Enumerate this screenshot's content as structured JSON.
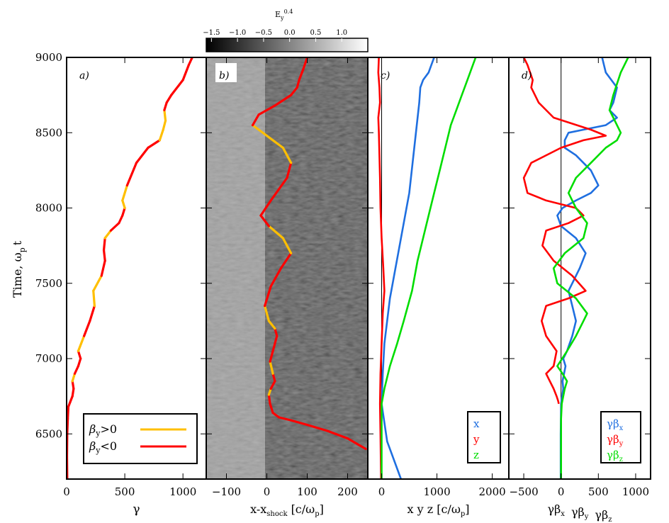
{
  "chart_data": {
    "type": "line",
    "shared_y": {
      "label": "Time, ω",
      "label_sub": "p",
      "label_tail": "t",
      "ylim": [
        6200,
        9000
      ],
      "ticks": [
        6500,
        7000,
        7500,
        8000,
        8500,
        9000
      ],
      "tick_labels": [
        "6500",
        "7000",
        "7500",
        "8000",
        "8500",
        "9000"
      ]
    },
    "panels": [
      {
        "id": "a",
        "panel_label": "a)",
        "xlabel": "γ",
        "xlim": [
          0,
          1200
        ],
        "xticks": [
          0,
          500,
          1000
        ],
        "xtick_labels": [
          "0",
          "500",
          "1000"
        ],
        "legend": [
          {
            "label": "β",
            "sub": "y",
            "tail": ">0",
            "color": "#ffbf00"
          },
          {
            "label": "β",
            "sub": "y",
            "tail": "<0",
            "color": "#ff0000"
          }
        ],
        "series": [
          {
            "name": "gamma",
            "x": [
              5,
              3,
              5,
              10,
              15,
              30,
              50,
              60,
              50,
              70,
              100,
              120,
              100,
              150,
              200,
              240,
              230,
              300,
              330,
              320,
              330,
              380,
              450,
              480,
              500,
              480,
              520,
              600,
              700,
              800,
              830,
              850,
              840,
              860,
              900,
              1000,
              1050,
              1080
            ],
            "y": [
              6200,
              6350,
              6500,
              6600,
              6680,
              6710,
              6750,
              6800,
              6850,
              6900,
              6950,
              7000,
              7050,
              7150,
              7250,
              7350,
              7450,
              7550,
              7650,
              7720,
              7800,
              7850,
              7900,
              7950,
              8000,
              8050,
              8150,
              8300,
              8400,
              8450,
              8520,
              8580,
              8650,
              8700,
              8750,
              8850,
              8950,
              9000
            ],
            "sign": [
              "n",
              "n",
              "n",
              "n",
              "n",
              "n",
              "n",
              "n",
              "p",
              "n",
              "n",
              "n",
              "p",
              "n",
              "n",
              "p",
              "p",
              "n",
              "n",
              "n",
              "p",
              "n",
              "n",
              "n",
              "p",
              "p",
              "n",
              "n",
              "n",
              "p",
              "p",
              "p",
              "n",
              "n",
              "n",
              "n",
              "n",
              "n"
            ]
          }
        ]
      },
      {
        "id": "b",
        "panel_label": "b)",
        "xlabel": "x-x",
        "xlabel_sub": "shock",
        "xlabel_tail": "[c/ω",
        "xlabel_tail_sub": "p",
        "xlabel_end": "]",
        "xlim": [
          -150,
          250
        ],
        "xticks": [
          -100,
          0,
          100,
          200
        ],
        "xtick_labels": [
          "−100",
          "0",
          "100",
          "200"
        ],
        "colorbar": {
          "label": "E",
          "label_sub": "y",
          "label_sup": "0.4",
          "range": [
            -1.6,
            1.5
          ],
          "ticks": [
            -1.5,
            -1.0,
            -0.5,
            0.0,
            0.5,
            1.0
          ],
          "tick_labels": [
            "−1.5",
            "−1.0",
            "−0.5",
            "0.0",
            "0.5",
            "1.0"
          ],
          "colors": [
            "#000000",
            "#ffffff"
          ]
        },
        "series": [
          {
            "name": "particle_track",
            "x": [
              245,
              200,
              150,
              100,
              60,
              30,
              15,
              8,
              5,
              10,
              20,
              15,
              8,
              15,
              25,
              20,
              5,
              -5,
              10,
              35,
              60,
              40,
              5,
              -15,
              10,
              50,
              60,
              40,
              0,
              -35,
              -20,
              20,
              60,
              75,
              80,
              90,
              100
            ],
            "y": [
              6400,
              6470,
              6520,
              6560,
              6590,
              6610,
              6640,
              6700,
              6760,
              6800,
              6850,
              6900,
              6980,
              7050,
              7150,
              7200,
              7250,
              7350,
              7480,
              7600,
              7700,
              7800,
              7880,
              7950,
              8050,
              8200,
              8300,
              8400,
              8480,
              8550,
              8620,
              8680,
              8750,
              8800,
              8850,
              8920,
              9000
            ],
            "sign": [
              "n",
              "n",
              "n",
              "n",
              "n",
              "n",
              "n",
              "n",
              "p",
              "n",
              "n",
              "p",
              "n",
              "n",
              "n",
              "p",
              "p",
              "n",
              "n",
              "n",
              "p",
              "p",
              "n",
              "n",
              "n",
              "n",
              "p",
              "p",
              "p",
              "n",
              "n",
              "n",
              "n",
              "n",
              "n",
              "n",
              "n"
            ]
          }
        ]
      },
      {
        "id": "c",
        "panel_label": "c)",
        "xlabel": "x  y  z  [c/ω",
        "xlabel_sub": "p",
        "xlabel_end": "]",
        "xlim": [
          -250,
          2300
        ],
        "xticks": [
          0,
          1000,
          2000
        ],
        "xtick_labels": [
          "0",
          "1000",
          "2000"
        ],
        "legend": [
          {
            "label": "x",
            "color": "#1f6fe0"
          },
          {
            "label": "y",
            "color": "#ff0000"
          },
          {
            "label": "z",
            "color": "#00dd00"
          }
        ],
        "series": [
          {
            "name": "x",
            "color": "#1f6fe0",
            "x": [
              350,
              100,
              0,
              20,
              50,
              100,
              150,
              200,
              250,
              300,
              350,
              400,
              450,
              500,
              560,
              620,
              680,
              700,
              750,
              850,
              900,
              950
            ],
            "y": [
              6200,
              6450,
              6700,
              6900,
              7100,
              7250,
              7400,
              7500,
              7600,
              7700,
              7800,
              7900,
              8000,
              8100,
              8300,
              8500,
              8700,
              8800,
              8850,
              8900,
              8950,
              9000
            ]
          },
          {
            "name": "y",
            "color": "#ff0000",
            "x": [
              -10,
              -20,
              -30,
              -20,
              0,
              20,
              50,
              30,
              0,
              -20,
              -30,
              -40,
              -50,
              -60,
              -30,
              -40,
              -60,
              -50
            ],
            "y": [
              6200,
              6500,
              6700,
              6900,
              7100,
              7300,
              7450,
              7600,
              7800,
              8000,
              8200,
              8350,
              8500,
              8600,
              8700,
              8800,
              8900,
              9000
            ]
          },
          {
            "name": "z",
            "color": "#00dd00",
            "x": [
              0,
              0,
              0,
              50,
              150,
              280,
              400,
              550,
              650,
              750,
              850,
              950,
              1050,
              1150,
              1250,
              1350,
              1450,
              1550,
              1650,
              1700
            ],
            "y": [
              6200,
              6500,
              6700,
              6800,
              6950,
              7100,
              7250,
              7450,
              7650,
              7800,
              7950,
              8100,
              8250,
              8400,
              8550,
              8650,
              8750,
              8850,
              8950,
              9000
            ]
          }
        ]
      },
      {
        "id": "d",
        "panel_label": "d)",
        "xlabel": "γβ",
        "xlim": [
          -700,
          1200
        ],
        "xticks": [
          -500,
          0,
          500,
          1000
        ],
        "xtick_labels": [
          "−500",
          "0",
          "500",
          "1000"
        ],
        "xlabel_parts": [
          {
            "label": "γβ",
            "sub": "x"
          },
          {
            "label": "γβ",
            "sub": "y"
          },
          {
            "label": "γβ",
            "sub": "z"
          }
        ],
        "legend": [
          {
            "label": "γβ",
            "sub": "x",
            "color": "#1f6fe0"
          },
          {
            "label": "γβ",
            "sub": "y",
            "color": "#ff0000"
          },
          {
            "label": "γβ",
            "sub": "z",
            "color": "#00dd00"
          }
        ],
        "series": [
          {
            "name": "gbx",
            "color": "#1f6fe0",
            "x": [
              -5,
              -5,
              0,
              30,
              20,
              40,
              60,
              30,
              80,
              150,
              200,
              150,
              100,
              150,
              250,
              330,
              200,
              0,
              -50,
              20,
              200,
              400,
              500,
              400,
              200,
              50,
              50,
              100,
              300,
              600,
              750,
              650,
              700,
              750,
              600,
              550
            ],
            "y": [
              6200,
              6500,
              6700,
              6800,
              6850,
              6900,
              6950,
              7000,
              7050,
              7150,
              7250,
              7350,
              7450,
              7500,
              7600,
              7700,
              7800,
              7880,
              7950,
              8000,
              8050,
              8100,
              8150,
              8250,
              8350,
              8400,
              8450,
              8500,
              8520,
              8550,
              8600,
              8650,
              8700,
              8800,
              8900,
              9000
            ]
          },
          {
            "name": "gby",
            "color": "#ff0000",
            "x": [
              -30,
              -40,
              -60,
              -100,
              -150,
              -200,
              -100,
              -60,
              -200,
              -260,
              -200,
              100,
              330,
              150,
              -100,
              -250,
              -200,
              100,
              300,
              200,
              -200,
              -450,
              -500,
              -400,
              0,
              300,
              600,
              400,
              -100,
              -300,
              -400,
              -380,
              -450,
              -500
            ],
            "y": [
              6700,
              6720,
              6750,
              6800,
              6850,
              6900,
              6950,
              7050,
              7150,
              7250,
              7350,
              7400,
              7450,
              7550,
              7650,
              7750,
              7850,
              7900,
              7950,
              8000,
              8050,
              8100,
              8200,
              8300,
              8400,
              8450,
              8480,
              8520,
              8600,
              8700,
              8800,
              8850,
              8950,
              9000
            ]
          },
          {
            "name": "gbz",
            "color": "#00dd00",
            "x": [
              0,
              0,
              10,
              50,
              80,
              20,
              -50,
              80,
              200,
              300,
              350,
              200,
              -50,
              -100,
              50,
              300,
              350,
              200,
              100,
              200,
              400,
              600,
              750,
              800,
              750,
              700,
              650,
              700,
              800,
              900
            ],
            "y": [
              6200,
              6600,
              6700,
              6800,
              6850,
              6900,
              6950,
              7050,
              7150,
              7250,
              7300,
              7400,
              7500,
              7600,
              7700,
              7800,
              7900,
              8000,
              8100,
              8200,
              8300,
              8400,
              8450,
              8500,
              8550,
              8600,
              8650,
              8750,
              8900,
              9000
            ]
          }
        ]
      }
    ]
  }
}
